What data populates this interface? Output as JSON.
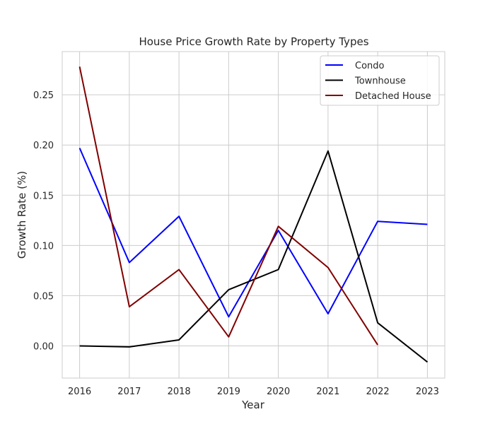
{
  "chart_data": {
    "type": "line",
    "title": "House Price Growth Rate by Property Types",
    "xlabel": "Year",
    "ylabel": "Growth Rate (%)",
    "x": [
      "2016",
      "2017",
      "2018",
      "2019",
      "2020",
      "2021",
      "2022",
      "2023"
    ],
    "xlim": [
      2015.65,
      2023.35
    ],
    "ylim": [
      -0.032,
      0.293
    ],
    "yticks": [
      "0.00",
      "0.05",
      "0.10",
      "0.15",
      "0.20",
      "0.25"
    ],
    "grid": true,
    "legend_position": "upper right",
    "series": [
      {
        "name": "Condo",
        "color": "#0000ff",
        "values": [
          0.197,
          0.083,
          0.129,
          0.029,
          0.115,
          0.032,
          0.124,
          0.121
        ]
      },
      {
        "name": "Townhouse",
        "color": "#000000",
        "values": [
          0.0,
          -0.001,
          0.006,
          0.056,
          0.076,
          0.194,
          0.023,
          -0.016
        ]
      },
      {
        "name": "Detached House",
        "color": "#800000",
        "values": [
          0.278,
          0.039,
          0.076,
          0.009,
          0.119,
          0.078,
          0.001,
          null
        ]
      }
    ]
  }
}
